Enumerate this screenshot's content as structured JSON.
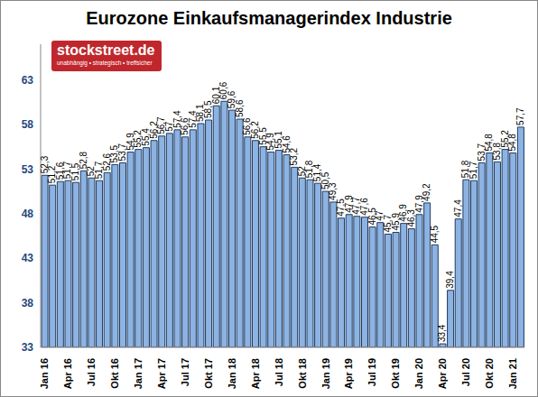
{
  "chart_data": {
    "type": "bar",
    "title": "Eurozone Einkaufsmanagerindex Industrie",
    "annotations": [
      "stockstreet.de",
      "unabhängig • strategisch • treffsicher"
    ],
    "categories": [
      "Jan 16",
      null,
      null,
      "Apr 16",
      null,
      null,
      "Jul 16",
      null,
      null,
      "Okt 16",
      null,
      null,
      "Jan 17",
      null,
      null,
      "Apr 17",
      null,
      null,
      "Jul 17",
      null,
      null,
      "Okt 17",
      null,
      null,
      "Jan 18",
      null,
      null,
      "Apr 18",
      null,
      null,
      "Jul 18",
      null,
      null,
      "Okt 18",
      null,
      null,
      "Jan 19",
      null,
      null,
      "Apr 19",
      null,
      null,
      "Jul 19",
      null,
      null,
      "Okt 19",
      null,
      null,
      "Jan 20",
      null,
      null,
      "Apr 20",
      null,
      null,
      "Jul 20",
      null,
      null,
      "Okt 20",
      null,
      null,
      "Jan 21",
      null
    ],
    "values": [
      52.3,
      51.2,
      51.6,
      51.7,
      51.5,
      52.8,
      52,
      51.7,
      52.6,
      53.5,
      53.7,
      54.9,
      55.2,
      55.4,
      56.2,
      56.7,
      57,
      57.4,
      56.6,
      57.4,
      58.1,
      58.5,
      60.1,
      60.6,
      59.6,
      58.6,
      56.6,
      56.2,
      55.5,
      54.9,
      55.1,
      54.6,
      53.2,
      52,
      51.8,
      51.4,
      50.5,
      49.3,
      47.5,
      47.9,
      47.7,
      47.6,
      46.5,
      47,
      45.7,
      45.9,
      46.9,
      46.3,
      47.9,
      49.2,
      44.5,
      33.4,
      39.4,
      47.4,
      51.8,
      51.7,
      53.7,
      54.8,
      53.8,
      55.2,
      54.8,
      57.7
    ],
    "value_labels": [
      "52,3",
      "51,2",
      "51,6",
      "51,7",
      "51,5",
      "52,8",
      "52",
      "51,7",
      "52,6",
      "53,5",
      "53,7",
      "54,9",
      "55,2",
      "55,4",
      "56,2",
      "56,7",
      "57",
      "57,4",
      "56,6",
      "57,4",
      "58,1",
      "58,5",
      "60,1",
      "60,6",
      "59,6",
      "58,6",
      "56,6",
      "56,2",
      "55,5",
      "54,9",
      "55,1",
      "54,6",
      "53,2",
      "52",
      "51,8",
      "51,4",
      "50,5",
      "49,3",
      "47,5",
      "47,9",
      "47,7",
      "47,6",
      "46,5",
      "47",
      "45,7",
      "45,9",
      "46,9",
      "46,3",
      "47,9",
      "49,2",
      "44,5",
      "33,4",
      "39,4",
      "47,4",
      "51,8",
      "51,7",
      "53,7",
      "54,8",
      "53,8",
      "55,2",
      "54,8",
      "57,7"
    ],
    "color": "#8db3e2",
    "ylim": [
      33,
      67
    ],
    "yticks": [
      33,
      38,
      43,
      48,
      53,
      58,
      63
    ],
    "grid": false,
    "data_labels": true
  }
}
